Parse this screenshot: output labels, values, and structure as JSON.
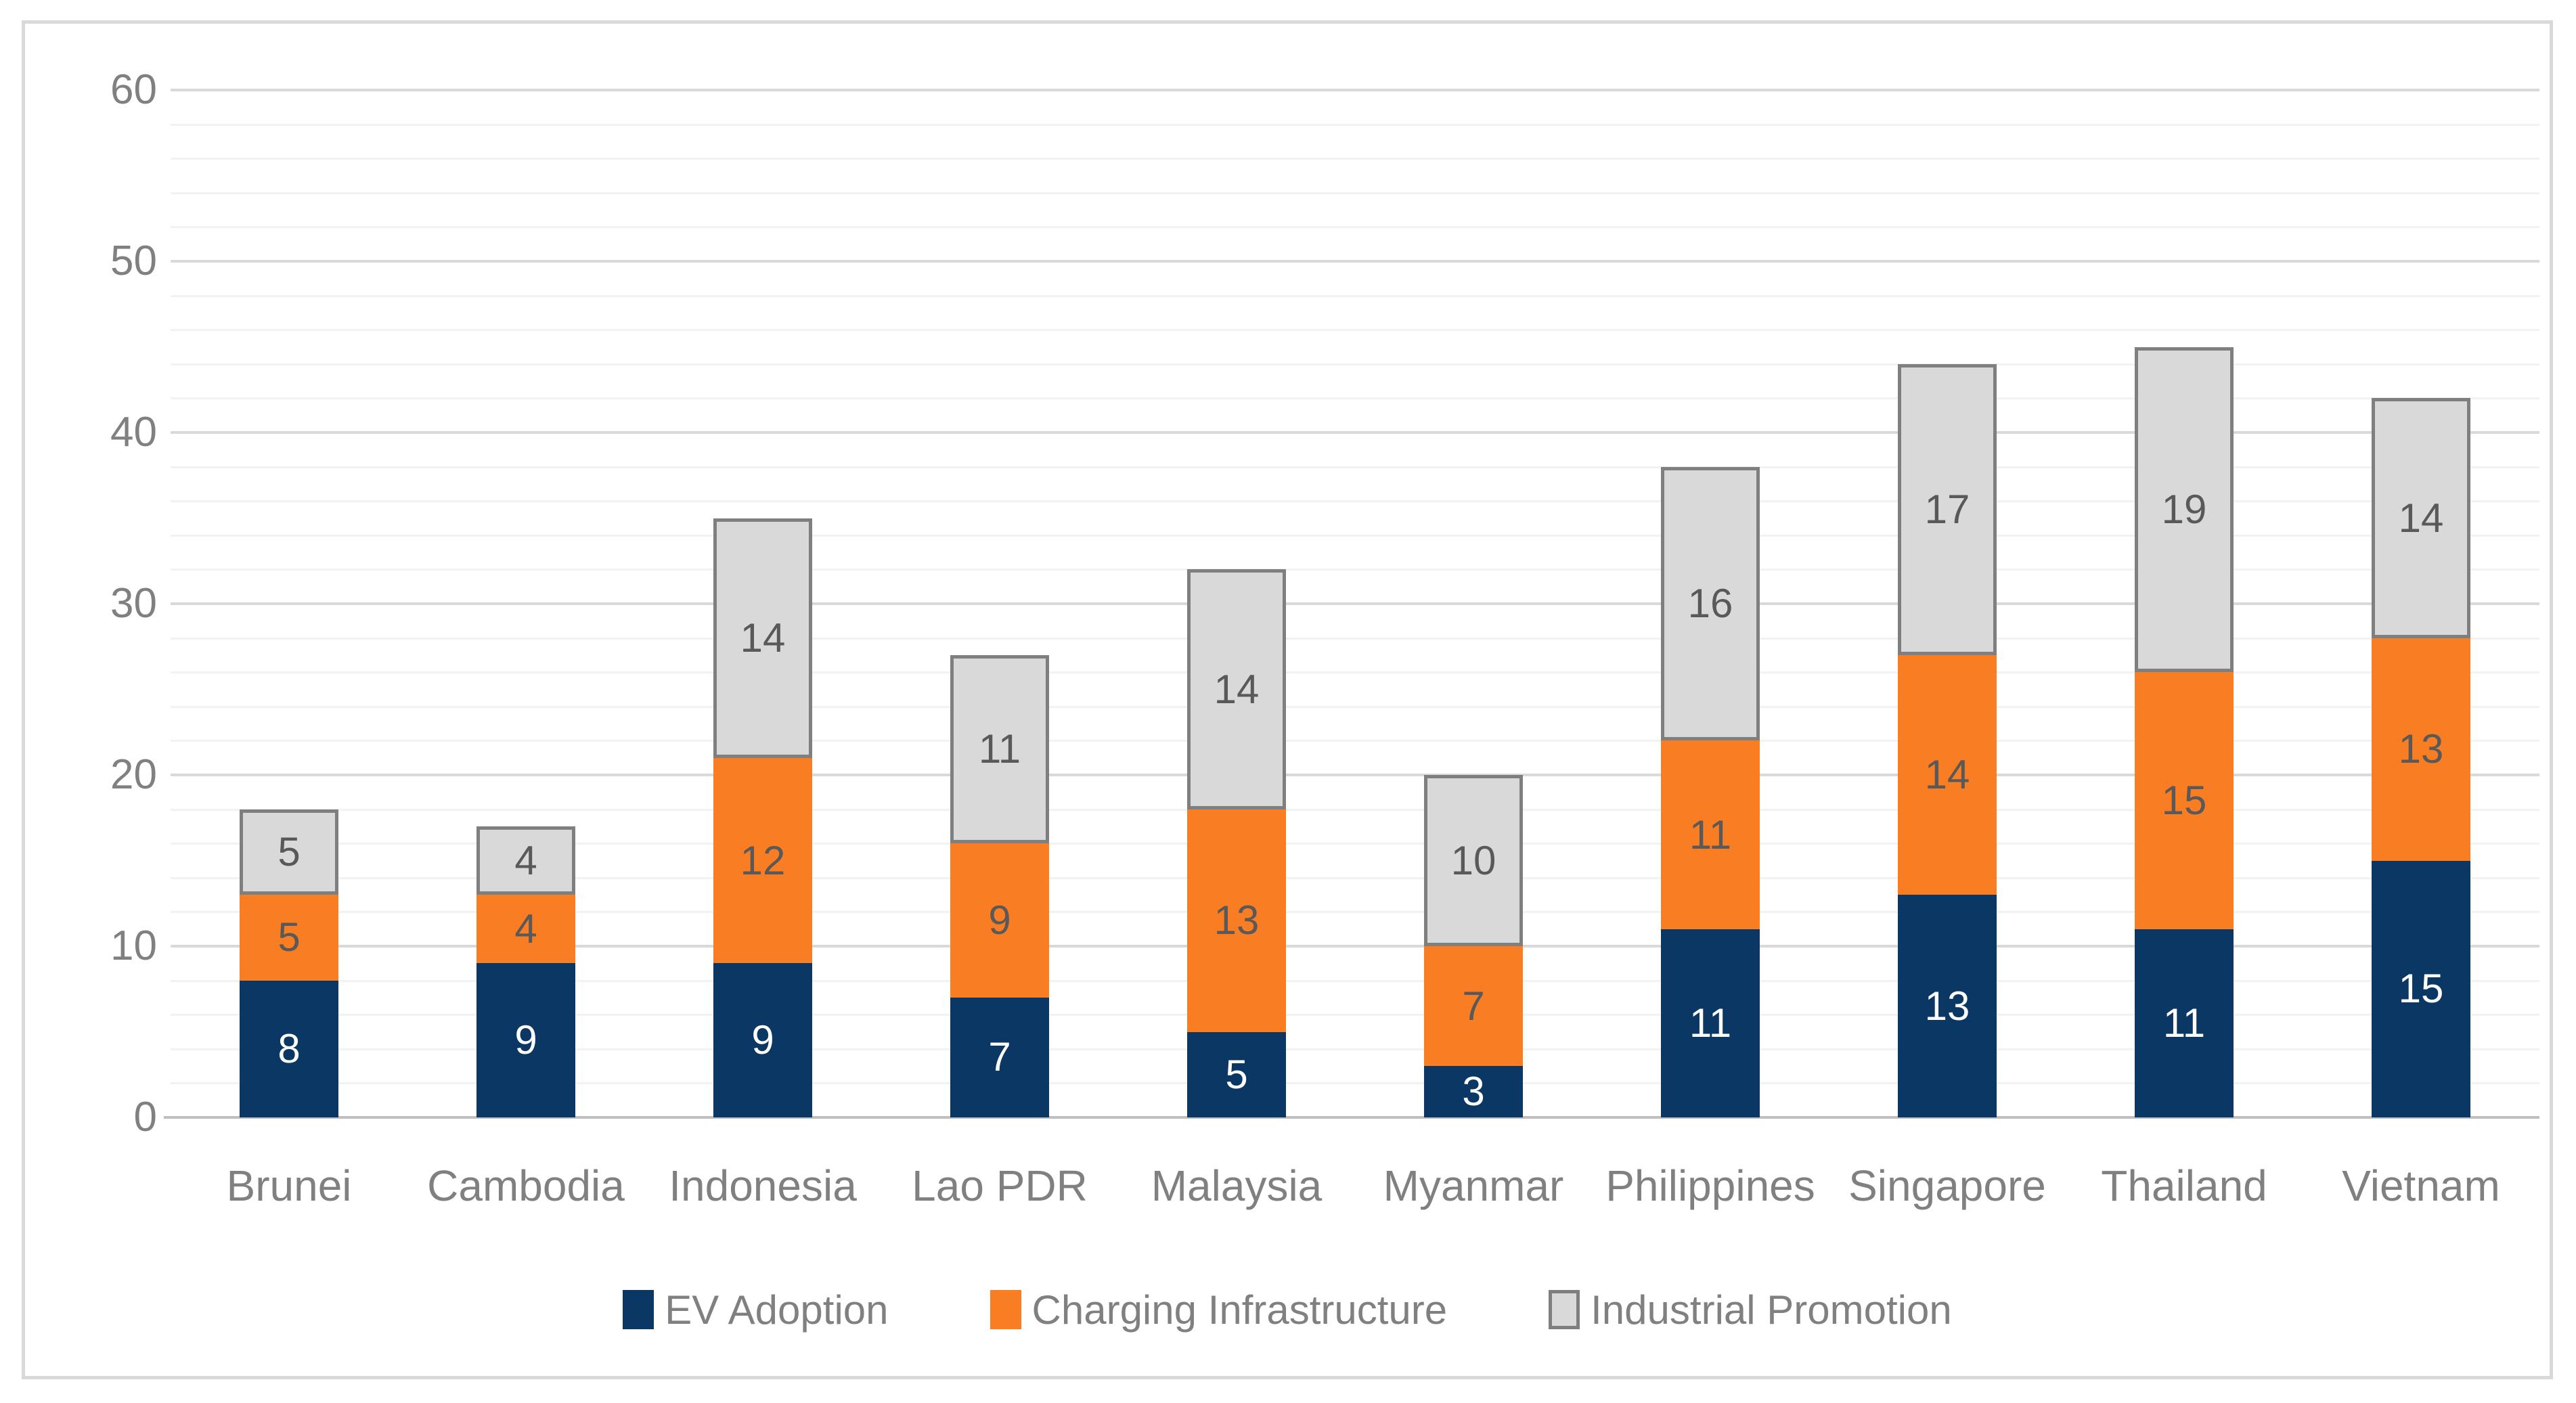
{
  "frame": {
    "background": "#FFFFFF",
    "border_color": "#D9D9D9"
  },
  "chart_data": {
    "type": "bar",
    "stacked": true,
    "title": "",
    "categories": [
      "Brunei",
      "Cambodia",
      "Indonesia",
      "Lao PDR",
      "Malaysia",
      "Myanmar",
      "Philippines",
      "Singapore",
      "Thailand",
      "Vietnam"
    ],
    "series": [
      {
        "name": "EV Adoption",
        "color": "#0A3763",
        "label_color": "#FFFFFF",
        "values": [
          8,
          9,
          9,
          7,
          5,
          3,
          11,
          13,
          11,
          15
        ]
      },
      {
        "name": "Charging Infrastructure",
        "color": "#F97D23",
        "label_color": "#595959",
        "values": [
          5,
          4,
          12,
          9,
          13,
          7,
          11,
          14,
          15,
          13
        ]
      },
      {
        "name": "Industrial Promotion",
        "color": "#D9D9D9",
        "border_color": "#7F7F7F",
        "label_color": "#595959",
        "values": [
          5,
          4,
          14,
          11,
          14,
          10,
          16,
          17,
          19,
          14
        ]
      }
    ],
    "totals": [
      18,
      17,
      35,
      27,
      32,
      20,
      38,
      44,
      45,
      42
    ],
    "y_axis": {
      "min": 0,
      "max": 60,
      "major_step": 10,
      "minor_step": 2,
      "tick_labels": [
        "0",
        "10",
        "20",
        "30",
        "40",
        "50",
        "60"
      ]
    },
    "grid": {
      "minor_color": "#F2F2F2",
      "major_color": "#D9D9D9",
      "axis_line_color": "#BFBFBF",
      "gridlines_on": true
    },
    "legend": {
      "position": "bottom",
      "items": [
        "EV Adoption",
        "Charging Infrastructure",
        "Industrial Promotion"
      ]
    },
    "data_labels_shown": true
  }
}
